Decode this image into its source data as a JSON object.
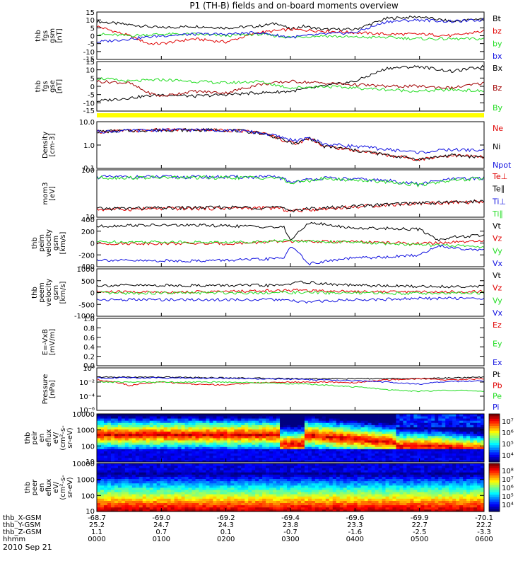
{
  "title": "P1 (TH-B) fields and on-board moments overview",
  "date_label": "2010 Sep 21",
  "colors": {
    "black": "#000000",
    "red": "#e00000",
    "green": "#22dd22",
    "blue": "#1010e0",
    "darkred": "#a00000",
    "yellow": "#ffff00"
  },
  "chart_data": [
    {
      "type": "line",
      "id": "fgs",
      "ylabel": [
        "thb",
        "fgs",
        "gsm",
        "[nT]"
      ],
      "yticks": [
        "15",
        "10",
        "5",
        "0",
        "-5",
        "-10",
        "-15"
      ],
      "ylim": [
        -15,
        15
      ],
      "series": [
        {
          "name": "Bt",
          "color": "#000000",
          "x": [
            0,
            0.5,
            1,
            1.5,
            2,
            2.5,
            2.8,
            3,
            3.2,
            3.5,
            4,
            4.5,
            5,
            5.5,
            6
          ],
          "y": [
            9,
            7,
            5,
            6,
            5,
            6,
            8,
            4,
            6,
            4,
            4,
            11,
            12,
            9,
            11
          ]
        },
        {
          "name": "bz",
          "color": "#e00000",
          "x": [
            0,
            0.5,
            0.8,
            1,
            1.5,
            2,
            2.5,
            3,
            3.5,
            4,
            4.5,
            5,
            5.5,
            6
          ],
          "y": [
            6,
            0,
            -5,
            -5,
            -2,
            -4,
            2,
            4,
            3,
            2,
            1,
            1,
            0,
            3
          ]
        },
        {
          "name": "by",
          "color": "#22dd22",
          "x": [
            0,
            0.5,
            1,
            1.5,
            2,
            2.5,
            3,
            3.5,
            4,
            4.5,
            5,
            5.5,
            6
          ],
          "y": [
            1,
            0,
            1,
            1,
            0,
            1,
            -1,
            0,
            -1,
            -1,
            -2,
            -2,
            -2
          ]
        },
        {
          "name": "bx",
          "color": "#1010e0",
          "x": [
            0,
            0.5,
            1,
            1.5,
            2,
            2.5,
            3,
            3.5,
            4,
            4.5,
            5,
            5.5,
            6
          ],
          "y": [
            -4,
            -2,
            0,
            1,
            1,
            2,
            -1,
            1,
            2,
            9,
            10,
            9,
            10
          ]
        }
      ]
    },
    {
      "type": "line",
      "id": "fgs-gse",
      "ylabel": [
        "thb",
        "fgs",
        "gse",
        "[nT]"
      ],
      "yticks": [
        "15",
        "10",
        "5",
        "0",
        "-5",
        "-10",
        "-15"
      ],
      "ylim": [
        -15,
        15
      ],
      "series": [
        {
          "name": "Bx",
          "color": "#000000",
          "x": [
            0,
            0.5,
            1,
            1.5,
            2,
            2.5,
            3,
            3.5,
            4,
            4.5,
            5,
            5.5,
            6
          ],
          "y": [
            -9,
            -7,
            -5,
            -6,
            -5,
            -4,
            -3,
            0,
            3,
            11,
            12,
            9,
            12
          ]
        },
        {
          "name": "Bz",
          "color": "#a00000",
          "x": [
            0,
            0.5,
            0.8,
            1,
            1.5,
            2,
            2.5,
            3,
            3.5,
            4,
            4.5,
            5,
            5.5,
            6
          ],
          "y": [
            3,
            2,
            -4,
            -6,
            -3,
            -4,
            1,
            3,
            2,
            1,
            0,
            0,
            -1,
            2
          ]
        },
        {
          "name": "By",
          "color": "#22dd22",
          "x": [
            0,
            0.5,
            1,
            1.5,
            2,
            2.5,
            3,
            3.5,
            4,
            4.5,
            5,
            5.5,
            6
          ],
          "y": [
            5,
            3,
            4,
            3,
            2,
            3,
            -1,
            0,
            -1,
            -2,
            -3,
            -2,
            -3
          ]
        }
      ]
    },
    {
      "type": "line",
      "id": "density",
      "ylabel": [
        "Density",
        "[cm-3]"
      ],
      "yticks": [
        "10.0",
        "1.0",
        "0.1"
      ],
      "yscale": "log",
      "ylim": [
        0.1,
        30
      ],
      "series": [
        {
          "name": "Ne",
          "color": "#e00000",
          "x": [
            0,
            0.5,
            1,
            1.5,
            2,
            2.5,
            2.9,
            3.1,
            3.3,
            3.5,
            4,
            4.5,
            5,
            5.5,
            6
          ],
          "y": [
            9,
            10,
            11,
            11,
            11,
            8,
            3,
            2,
            4,
            1.5,
            0.9,
            0.5,
            0.3,
            0.5,
            0.4
          ]
        },
        {
          "name": "Ni",
          "color": "#000000",
          "x": [
            0,
            0.5,
            1,
            1.5,
            2,
            2.5,
            2.9,
            3.1,
            3.3,
            3.5,
            4,
            4.5,
            5,
            5.5,
            6
          ],
          "y": [
            9,
            10,
            11,
            11,
            11,
            8,
            3,
            2,
            4,
            1.5,
            0.9,
            0.5,
            0.3,
            0.5,
            0.4
          ]
        },
        {
          "name": "Npot",
          "color": "#1010e0",
          "x": [
            0,
            0.5,
            1,
            1.5,
            2,
            2.5,
            2.9,
            3.1,
            3.3,
            3.5,
            4,
            4.5,
            5,
            5.5,
            6
          ],
          "y": [
            9,
            10,
            11,
            11,
            11,
            8,
            4,
            3,
            4,
            2,
            1.5,
            1,
            0.7,
            1,
            0.9
          ]
        }
      ]
    },
    {
      "type": "line",
      "id": "temperature",
      "ylabel": [
        "mom3",
        "[eV]"
      ],
      "yticks": [
        "100",
        "10"
      ],
      "yscale": "log",
      "ylim": [
        5,
        1000
      ],
      "series": [
        {
          "name": "Te⊥",
          "color": "#e00000",
          "x": [
            0,
            1,
            2,
            2.8,
            3,
            3.5,
            4,
            4.5,
            5,
            5.5,
            6
          ],
          "y": [
            12,
            13,
            14,
            14,
            10,
            13,
            16,
            20,
            24,
            26,
            28
          ]
        },
        {
          "name": "Te∥",
          "color": "#000000",
          "x": [
            0,
            1,
            2,
            2.8,
            3,
            3.5,
            4,
            4.5,
            5,
            5.5,
            6
          ],
          "y": [
            13,
            14,
            15,
            15,
            11,
            14,
            17,
            21,
            25,
            27,
            30
          ]
        },
        {
          "name": "Ti⊥",
          "color": "#1010e0",
          "x": [
            0,
            1,
            2,
            2.8,
            3,
            3.5,
            4,
            4.5,
            5,
            5.5,
            6
          ],
          "y": [
            450,
            450,
            450,
            450,
            250,
            400,
            350,
            300,
            200,
            350,
            400
          ]
        },
        {
          "name": "Ti∥",
          "color": "#22dd22",
          "x": [
            0,
            1,
            2,
            2.8,
            3,
            3.5,
            4,
            4.5,
            5,
            5.5,
            6
          ],
          "y": [
            420,
            420,
            420,
            420,
            220,
            370,
            320,
            270,
            180,
            320,
            380
          ]
        }
      ]
    },
    {
      "type": "line",
      "id": "peim-velocity",
      "ylabel": [
        "thb",
        "peim",
        "velocity",
        "gsm",
        "[km/s]"
      ],
      "yticks": [
        "400",
        "200",
        "0",
        "-200",
        "-400"
      ],
      "ylim": [
        -400,
        400
      ],
      "series": [
        {
          "name": "Vt",
          "color": "#000000",
          "x": [
            0,
            0.5,
            1,
            1.5,
            2,
            2.5,
            2.9,
            3,
            3.3,
            3.6,
            4,
            4.5,
            5,
            5.3,
            5.5,
            6
          ],
          "y": [
            280,
            300,
            300,
            300,
            290,
            280,
            260,
            50,
            350,
            300,
            250,
            250,
            230,
            50,
            100,
            130
          ]
        },
        {
          "name": "Vz",
          "color": "#e00000",
          "x": [
            0,
            1,
            2,
            3,
            4,
            5,
            6
          ],
          "y": [
            -10,
            -5,
            -10,
            30,
            20,
            -10,
            30
          ]
        },
        {
          "name": "Vy",
          "color": "#22dd22",
          "x": [
            0,
            1,
            2,
            3,
            4,
            5,
            6
          ],
          "y": [
            20,
            20,
            10,
            40,
            10,
            -30,
            -60
          ]
        },
        {
          "name": "Vx",
          "color": "#1010e0",
          "x": [
            0,
            0.5,
            1,
            1.5,
            2,
            2.5,
            2.9,
            3,
            3.3,
            3.6,
            4,
            4.5,
            5,
            5.3,
            5.5,
            6
          ],
          "y": [
            -280,
            -300,
            -300,
            -300,
            -290,
            -280,
            -250,
            -50,
            -350,
            -300,
            -250,
            -240,
            -200,
            -40,
            -80,
            -120
          ]
        }
      ]
    },
    {
      "type": "line",
      "id": "peem-velocity",
      "ylabel": [
        "thb",
        "peem",
        "velocity",
        "gsm",
        "[km/s]"
      ],
      "yticks": [
        "1000",
        "500",
        "0",
        "-500",
        "-1000"
      ],
      "ylim": [
        -1000,
        1000
      ],
      "series": [
        {
          "name": "Vt",
          "color": "#000000",
          "x": [
            0,
            1,
            2,
            2.8,
            3.2,
            3.6,
            4,
            4.5,
            5,
            5.5,
            6
          ],
          "y": [
            300,
            300,
            300,
            300,
            450,
            350,
            300,
            280,
            260,
            250,
            280
          ]
        },
        {
          "name": "Vz",
          "color": "#e00000",
          "x": [
            0,
            1,
            2,
            3,
            4,
            5,
            6
          ],
          "y": [
            30,
            20,
            40,
            100,
            50,
            30,
            40
          ]
        },
        {
          "name": "Vy",
          "color": "#22dd22",
          "x": [
            0,
            1,
            2,
            3,
            4,
            5,
            6
          ],
          "y": [
            -30,
            -20,
            -10,
            0,
            -20,
            -30,
            -20
          ]
        },
        {
          "name": "Vx",
          "color": "#1010e0",
          "x": [
            0,
            1,
            2,
            2.8,
            3.2,
            3.6,
            4,
            4.5,
            5,
            5.5,
            6
          ],
          "y": [
            -300,
            -300,
            -300,
            -300,
            -400,
            -350,
            -300,
            -280,
            -250,
            -240,
            -260
          ]
        }
      ]
    },
    {
      "type": "line",
      "id": "efield",
      "ylabel": [
        "E=-VxB",
        "[mV/m]"
      ],
      "yticks": [
        "1.0",
        "0.8",
        "0.6",
        "0.4",
        "0.2",
        "0.0"
      ],
      "ylim": [
        0,
        1
      ],
      "series": [
        {
          "name": "Ez",
          "color": "#e00000",
          "x": [],
          "y": []
        },
        {
          "name": "Ey",
          "color": "#22dd22",
          "x": [],
          "y": []
        },
        {
          "name": "Ex",
          "color": "#1010e0",
          "x": [],
          "y": []
        }
      ]
    },
    {
      "type": "line",
      "id": "pressure",
      "ylabel": [
        "Pressure",
        "[nPa]"
      ],
      "yticks": [
        "10⁰",
        "10⁻²",
        "10⁻⁴",
        "10⁻⁶"
      ],
      "yscale": "log",
      "ylim": [
        1e-06,
        1
      ],
      "series": [
        {
          "name": "Pt",
          "color": "#000000",
          "x": [
            0,
            1,
            2,
            3,
            4,
            5,
            5.5,
            6
          ],
          "y": [
            0.05,
            0.05,
            0.04,
            0.03,
            0.03,
            0.03,
            0.04,
            0.05
          ]
        },
        {
          "name": "Pb",
          "color": "#e00000",
          "x": [
            0,
            0.5,
            1,
            1.5,
            2,
            2.5,
            3,
            3.5,
            4,
            4.5,
            5,
            5.5,
            6
          ],
          "y": [
            0.02,
            0.003,
            0.01,
            0.005,
            0.004,
            0.008,
            0.01,
            0.01,
            0.008,
            0.02,
            0.03,
            0.02,
            0.03
          ]
        },
        {
          "name": "Pe",
          "color": "#22dd22",
          "x": [
            0,
            1,
            2,
            3,
            3.5,
            4,
            4.5,
            5,
            5.5,
            6
          ],
          "y": [
            0.01,
            0.01,
            0.01,
            0.006,
            0.004,
            0.002,
            0.0008,
            0.0005,
            0.0007,
            0.0005
          ]
        },
        {
          "name": "Pi",
          "color": "#1010e0",
          "x": [
            0,
            1,
            2,
            3,
            3.5,
            4,
            4.5,
            5,
            5.5,
            6
          ],
          "y": [
            0.04,
            0.04,
            0.035,
            0.025,
            0.02,
            0.015,
            0.01,
            0.005,
            0.012,
            0.015
          ]
        }
      ]
    },
    {
      "type": "heatmap",
      "id": "peir-eflux",
      "ylabel": [
        "thb",
        "peir",
        "en",
        "eflux",
        "eV/",
        "(cm²-s-",
        "sr-eV)"
      ],
      "yticks": [
        "10000",
        "1000",
        "100",
        "10"
      ],
      "yscale": "log",
      "ylim": [
        5,
        25000
      ],
      "colorbar_ticks": [
        "10⁷",
        "10⁶",
        "10⁵",
        "10⁴"
      ]
    },
    {
      "type": "heatmap",
      "id": "peer-eflux",
      "ylabel": [
        "thb",
        "peer",
        "en",
        "eflux",
        "eV/",
        "(cm²-s-",
        "sr-eV)"
      ],
      "yticks": [
        "10000",
        "1000",
        "100",
        "10"
      ],
      "yscale": "log",
      "ylim": [
        5,
        25000
      ],
      "colorbar_ticks": [
        "10⁸",
        "10⁷",
        "10⁶",
        "10⁵",
        "10⁴"
      ]
    }
  ],
  "x_axis": {
    "labels": [
      "thb_X-GSM",
      "thb_Y-GSM",
      "thb_Z-GSM",
      "hhmm"
    ],
    "ticks": [
      {
        "values": [
          "-68.7",
          "25.2",
          "1.1",
          "0000"
        ]
      },
      {
        "values": [
          "-69.0",
          "24.7",
          "0.7",
          "0100"
        ]
      },
      {
        "values": [
          "-69.2",
          "24.3",
          "0.1",
          "0200"
        ]
      },
      {
        "values": [
          "-69.4",
          "23.8",
          "-0.7",
          "0300"
        ]
      },
      {
        "values": [
          "-69.6",
          "23.3",
          "-1.6",
          "0400"
        ]
      },
      {
        "values": [
          "-69.9",
          "22.7",
          "-2.5",
          "0500"
        ]
      },
      {
        "values": [
          "-70.1",
          "22.2",
          "-3.3",
          "0600"
        ]
      }
    ]
  }
}
